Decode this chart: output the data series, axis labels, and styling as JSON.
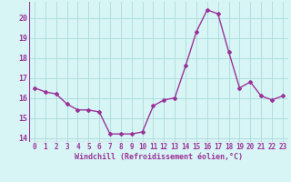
{
  "x": [
    0,
    1,
    2,
    3,
    4,
    5,
    6,
    7,
    8,
    9,
    10,
    11,
    12,
    13,
    14,
    15,
    16,
    17,
    18,
    19,
    20,
    21,
    22,
    23
  ],
  "y": [
    16.5,
    16.3,
    16.2,
    15.7,
    15.4,
    15.4,
    15.3,
    14.2,
    14.2,
    14.2,
    14.3,
    15.6,
    15.9,
    16.0,
    17.6,
    19.3,
    20.4,
    20.2,
    18.3,
    16.5,
    16.8,
    16.1,
    15.9,
    16.1
  ],
  "line_color": "#993399",
  "marker": "D",
  "markersize": 2,
  "linewidth": 1.0,
  "bg_color": "#d8f5f5",
  "grid_color": "#b0dede",
  "xlabel": "Windchill (Refroidissement éolien,°C)",
  "xlabel_color": "#993399",
  "tick_color": "#993399",
  "yticks": [
    14,
    15,
    16,
    17,
    18,
    19,
    20
  ],
  "xticks": [
    0,
    1,
    2,
    3,
    4,
    5,
    6,
    7,
    8,
    9,
    10,
    11,
    12,
    13,
    14,
    15,
    16,
    17,
    18,
    19,
    20,
    21,
    22,
    23
  ],
  "ylim": [
    13.8,
    20.8
  ],
  "xlim": [
    -0.5,
    23.5
  ],
  "tick_fontsize": 5.5,
  "xlabel_fontsize": 6.0
}
